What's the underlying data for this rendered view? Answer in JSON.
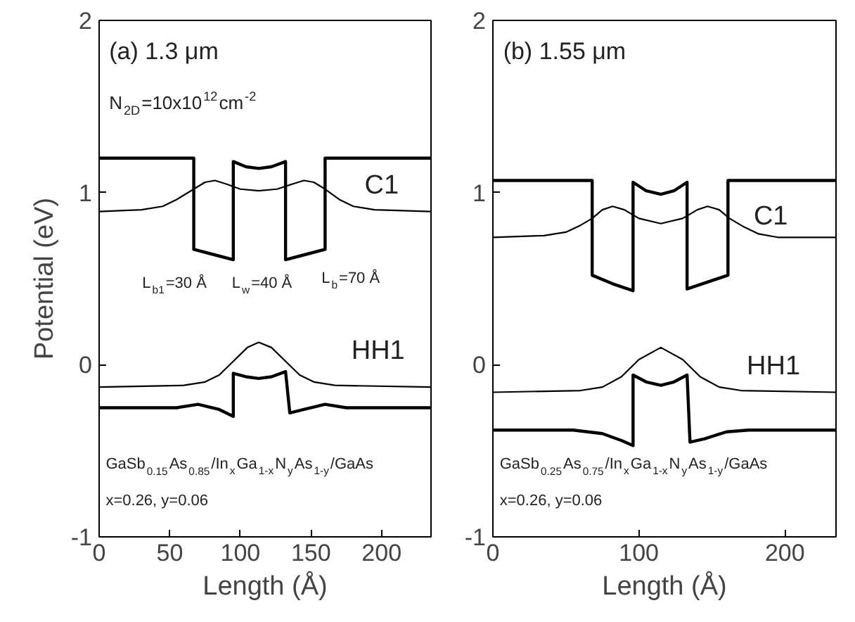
{
  "chart_data": [
    {
      "type": "line",
      "xlabel": "Length (Å)",
      "ylabel": "Potential (eV)",
      "xlim": [
        0,
        235
      ],
      "ylim": [
        -1,
        2
      ],
      "xticks": [
        0,
        50,
        100,
        150,
        200
      ],
      "yticks": [
        -1,
        0,
        1,
        2
      ],
      "grid": false,
      "line_style": "solid",
      "marker": "none",
      "series": [
        {
          "color": "#000000",
          "x": [
            0,
            67,
            67,
            81,
            95,
            95,
            104,
            113,
            122,
            132,
            132,
            146,
            160,
            160,
            235
          ],
          "values": [
            1.2,
            1.2,
            0.67,
            0.64,
            0.61,
            1.18,
            1.15,
            1.14,
            1.15,
            1.18,
            0.61,
            0.64,
            0.67,
            1.2,
            1.2
          ]
        },
        {
          "color": "#000000",
          "x": [
            0,
            30,
            45,
            55,
            67,
            75,
            82,
            90,
            100,
            113,
            126,
            137,
            145,
            152,
            160,
            170,
            180,
            195,
            235
          ],
          "values": [
            0.89,
            0.9,
            0.92,
            0.96,
            1.02,
            1.06,
            1.07,
            1.05,
            1.02,
            1.01,
            1.02,
            1.05,
            1.07,
            1.06,
            1.02,
            0.96,
            0.92,
            0.9,
            0.89
          ]
        },
        {
          "color": "#000000",
          "x": [
            0,
            55,
            70,
            85,
            95,
            95,
            104,
            113,
            122,
            132,
            135,
            145,
            160,
            175,
            235
          ],
          "values": [
            -0.25,
            -0.25,
            -0.23,
            -0.26,
            -0.3,
            -0.05,
            -0.07,
            -0.08,
            -0.07,
            -0.04,
            -0.28,
            -0.26,
            -0.23,
            -0.25,
            -0.25
          ]
        },
        {
          "color": "#000000",
          "x": [
            0,
            60,
            75,
            85,
            95,
            105,
            113,
            122,
            132,
            142,
            152,
            167,
            235
          ],
          "values": [
            -0.13,
            -0.12,
            -0.1,
            -0.06,
            0.02,
            0.1,
            0.13,
            0.1,
            0.02,
            -0.06,
            -0.1,
            -0.12,
            -0.13
          ]
        }
      ],
      "annotations": [
        "(a) 1.3 μm",
        "N$_{2D}$=10x10$^{12}$cm$^{-2}$",
        "C1",
        "L$_{b1}$=30 Å",
        "L$_{w}$=40 Å",
        "L$_{b}$=70 Å",
        "HH1",
        "GaSb$_{0.15}$As$_{0.85}$/In$_{x}$Ga$_{1-x}$N$_{y}$As$_{1-y}$/GaAs",
        "x=0.26, y=0.06"
      ]
    },
    {
      "type": "line",
      "xlabel": "Length (Å)",
      "xlim": [
        0,
        235
      ],
      "ylim": [
        -1,
        2
      ],
      "xticks": [
        0,
        100,
        200
      ],
      "yticks": [
        -1,
        0,
        1,
        2
      ],
      "grid": false,
      "line_style": "solid",
      "marker": "none",
      "series": [
        {
          "color": "#000000",
          "x": [
            0,
            68,
            68,
            82,
            96,
            96,
            105,
            115,
            124,
            133,
            133,
            147,
            161,
            161,
            235
          ],
          "values": [
            1.07,
            1.07,
            0.52,
            0.47,
            0.43,
            1.06,
            1.01,
            0.99,
            1.01,
            1.06,
            0.44,
            0.48,
            0.52,
            1.07,
            1.07
          ]
        },
        {
          "color": "#000000",
          "x": [
            0,
            35,
            50,
            60,
            68,
            75,
            82,
            90,
            100,
            115,
            130,
            140,
            147,
            155,
            162,
            172,
            182,
            195,
            235
          ],
          "values": [
            0.74,
            0.75,
            0.77,
            0.81,
            0.85,
            0.9,
            0.92,
            0.9,
            0.85,
            0.82,
            0.85,
            0.9,
            0.92,
            0.9,
            0.85,
            0.8,
            0.76,
            0.74,
            0.74
          ]
        },
        {
          "color": "#000000",
          "x": [
            0,
            55,
            75,
            88,
            96,
            96,
            105,
            115,
            124,
            133,
            135,
            145,
            160,
            175,
            235
          ],
          "values": [
            -0.38,
            -0.38,
            -0.4,
            -0.44,
            -0.47,
            -0.06,
            -0.1,
            -0.12,
            -0.1,
            -0.06,
            -0.45,
            -0.43,
            -0.39,
            -0.38,
            -0.38
          ]
        },
        {
          "color": "#000000",
          "x": [
            0,
            60,
            75,
            88,
            100,
            115,
            130,
            142,
            155,
            170,
            235
          ],
          "values": [
            -0.16,
            -0.15,
            -0.13,
            -0.07,
            0.03,
            0.1,
            0.03,
            -0.07,
            -0.13,
            -0.15,
            -0.16
          ]
        }
      ],
      "annotations": [
        "(b) 1.55 μm",
        "C1",
        "HH1",
        "GaSb$_{0.25}$As$_{0.75}$/In$_{x}$Ga$_{1-x}$N$_{y}$As$_{1-y}$/GaAs",
        "x=0.26, y=0.06"
      ]
    }
  ]
}
